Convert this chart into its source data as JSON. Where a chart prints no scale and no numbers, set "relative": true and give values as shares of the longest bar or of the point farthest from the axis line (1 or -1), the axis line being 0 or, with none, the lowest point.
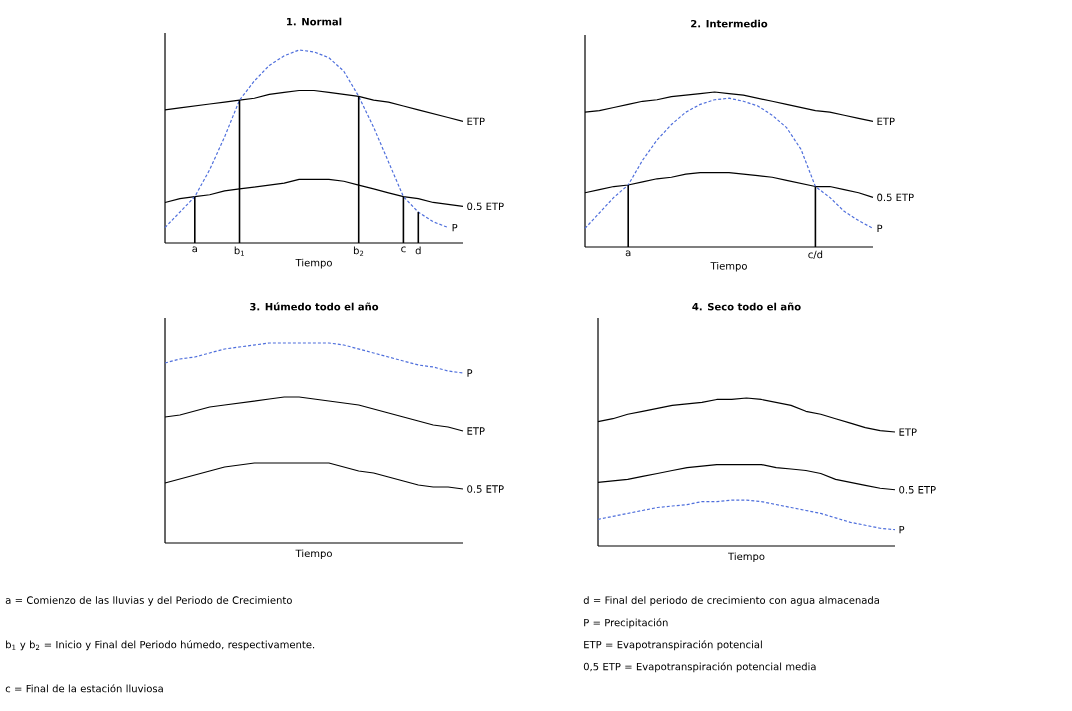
{
  "chart_data": [
    {
      "type": "line",
      "title": "1. Normal",
      "xlabel": "Tiempo",
      "relative": true,
      "marker": "none",
      "categories": [
        null,
        null,
        "a",
        null,
        null,
        "b$_{1}$",
        null,
        null,
        null,
        null,
        null,
        null,
        null,
        "b$_{2}$",
        null,
        null,
        "c",
        "d",
        null,
        null,
        null
      ],
      "series": [
        {
          "name": "ETP",
          "color": "#000000",
          "values": [
            0.69,
            0.7,
            0.71,
            0.72,
            0.73,
            0.74,
            0.75,
            0.77,
            0.78,
            0.79,
            0.79,
            0.78,
            0.77,
            0.76,
            0.74,
            0.73,
            0.71,
            0.69,
            0.67,
            0.65,
            0.63
          ]
        },
        {
          "name": "0.5 ETP",
          "color": "#000000",
          "values": [
            0.21,
            0.23,
            0.24,
            0.25,
            0.27,
            0.28,
            0.29,
            0.3,
            0.31,
            0.33,
            0.33,
            0.33,
            0.32,
            0.3,
            0.28,
            0.26,
            0.24,
            0.23,
            0.21,
            0.2,
            0.19
          ]
        },
        {
          "name": "P",
          "color": "#4f6fdc",
          "line_style": "dashed",
          "values": [
            0.08,
            0.16,
            0.24,
            0.38,
            0.55,
            0.74,
            0.84,
            0.92,
            0.97,
            1.0,
            0.99,
            0.96,
            0.89,
            0.76,
            0.6,
            0.42,
            0.24,
            0.16,
            0.11,
            0.08,
            null
          ]
        },
        {
          "type": "bar",
          "color": "#000000",
          "values": [
            null,
            null,
            0.24,
            null,
            null,
            0.74,
            null,
            null,
            null,
            null,
            null,
            null,
            null,
            0.76,
            null,
            null,
            0.24,
            0.16,
            null,
            null,
            null
          ]
        }
      ]
    },
    {
      "type": "line",
      "title": "2. Intermedio",
      "xlabel": "Tiempo",
      "relative": true,
      "marker": "none",
      "categories": [
        null,
        null,
        null,
        "a",
        null,
        null,
        null,
        null,
        null,
        null,
        null,
        null,
        null,
        null,
        null,
        null,
        "c/d",
        null,
        null,
        null,
        null
      ],
      "series": [
        {
          "name": "ETP",
          "color": "#000000",
          "values": [
            0.87,
            0.88,
            0.9,
            0.92,
            0.94,
            0.95,
            0.97,
            0.98,
            0.99,
            1.0,
            0.99,
            0.98,
            0.96,
            0.94,
            0.92,
            0.9,
            0.88,
            0.87,
            0.85,
            0.83,
            0.81
          ]
        },
        {
          "name": "0.5 ETP",
          "color": "#000000",
          "values": [
            0.35,
            0.37,
            0.39,
            0.4,
            0.42,
            0.44,
            0.45,
            0.47,
            0.48,
            0.48,
            0.48,
            0.47,
            0.46,
            0.45,
            0.43,
            0.41,
            0.39,
            0.39,
            0.37,
            0.35,
            0.32
          ]
        },
        {
          "name": "P",
          "color": "#4f6fdc",
          "line_style": "dashed",
          "values": [
            0.12,
            0.22,
            0.32,
            0.4,
            0.56,
            0.69,
            0.79,
            0.87,
            0.92,
            0.95,
            0.96,
            0.94,
            0.91,
            0.85,
            0.77,
            0.63,
            0.39,
            0.32,
            0.23,
            0.17,
            0.12
          ]
        },
        {
          "type": "bar",
          "color": "#000000",
          "values": [
            null,
            null,
            null,
            0.4,
            null,
            null,
            null,
            null,
            null,
            null,
            null,
            null,
            null,
            null,
            null,
            null,
            0.39,
            null,
            null,
            null,
            null
          ]
        }
      ]
    },
    {
      "type": "line",
      "title": "3. Húmedo todo el año",
      "xlabel": "Tiempo",
      "relative": true,
      "marker": "none",
      "categories": [
        null,
        null,
        null,
        null,
        null,
        null,
        null,
        null,
        null,
        null,
        null,
        null,
        null,
        null,
        null,
        null,
        null,
        null,
        null,
        null,
        null
      ],
      "series": [
        {
          "name": "P",
          "color": "#4f6fdc",
          "line_style": "dashed",
          "values": [
            0.9,
            0.92,
            0.93,
            0.95,
            0.97,
            0.98,
            0.99,
            1.0,
            1.0,
            1.0,
            1.0,
            1.0,
            0.99,
            0.97,
            0.95,
            0.93,
            0.91,
            0.89,
            0.88,
            0.86,
            0.85
          ]
        },
        {
          "name": "ETP",
          "color": "#000000",
          "values": [
            0.63,
            0.64,
            0.66,
            0.68,
            0.69,
            0.7,
            0.71,
            0.72,
            0.73,
            0.73,
            0.72,
            0.71,
            0.7,
            0.69,
            0.67,
            0.65,
            0.63,
            0.61,
            0.59,
            0.58,
            0.56
          ]
        },
        {
          "name": "0.5 ETP",
          "color": "#000000",
          "values": [
            0.3,
            0.32,
            0.34,
            0.36,
            0.38,
            0.39,
            0.4,
            0.4,
            0.4,
            0.4,
            0.4,
            0.4,
            0.38,
            0.36,
            0.35,
            0.33,
            0.31,
            0.29,
            0.28,
            0.28,
            0.27
          ]
        }
      ]
    },
    {
      "type": "line",
      "title": "4. Seco todo el año",
      "xlabel": "Tiempo",
      "relative": true,
      "marker": "none",
      "categories": [
        null,
        null,
        null,
        null,
        null,
        null,
        null,
        null,
        null,
        null,
        null,
        null,
        null,
        null,
        null,
        null,
        null,
        null,
        null,
        null,
        null
      ],
      "series": [
        {
          "name": "ETP",
          "color": "#000000",
          "values": [
            0.84,
            0.86,
            0.89,
            0.91,
            0.93,
            0.95,
            0.96,
            0.97,
            0.99,
            0.99,
            1.0,
            0.99,
            0.97,
            0.95,
            0.91,
            0.89,
            0.86,
            0.83,
            0.8,
            0.78,
            0.77
          ]
        },
        {
          "name": "0.5 ETP",
          "color": "#000000",
          "values": [
            0.43,
            0.44,
            0.45,
            0.47,
            0.49,
            0.51,
            0.53,
            0.54,
            0.55,
            0.55,
            0.55,
            0.55,
            0.53,
            0.52,
            0.51,
            0.49,
            0.45,
            0.43,
            0.41,
            0.39,
            0.38
          ]
        },
        {
          "name": "P",
          "color": "#4f6fdc",
          "line_style": "dashed",
          "values": [
            0.18,
            0.2,
            0.22,
            0.24,
            0.26,
            0.27,
            0.28,
            0.3,
            0.3,
            0.31,
            0.31,
            0.3,
            0.28,
            0.26,
            0.24,
            0.22,
            0.19,
            0.16,
            0.14,
            0.12,
            0.11
          ]
        }
      ]
    },
    {
      "type": "other",
      "annotations": [
        "a = Comienzo de las lluvias y del Periodo de Crecimiento",
        "b$_{1}$ y b$_{2}$ = Inicio y Final del Periodo húmedo, respectivamente.",
        "c = Final de la estación lluviosa",
        "d = Final del periodo de crecimiento con agua almacenada",
        "P = Precipitación",
        "ETP = Evapotranspiración potencial",
        "0,5 ETP = Evapotranspiración potencial media"
      ]
    }
  ]
}
